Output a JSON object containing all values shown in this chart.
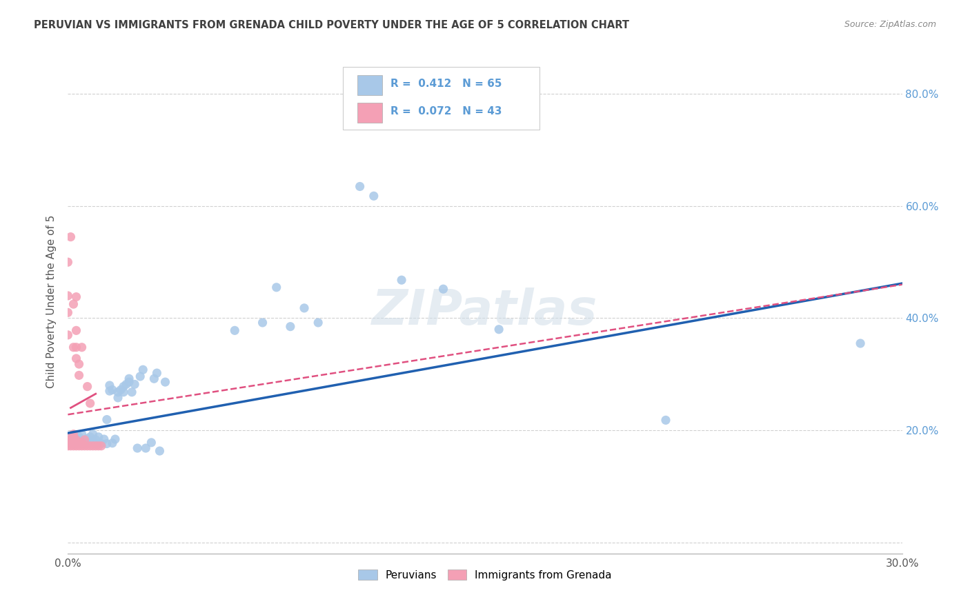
{
  "title": "PERUVIAN VS IMMIGRANTS FROM GRENADA CHILD POVERTY UNDER THE AGE OF 5 CORRELATION CHART",
  "source": "Source: ZipAtlas.com",
  "ylabel": "Child Poverty Under the Age of 5",
  "xlim": [
    0.0,
    0.3
  ],
  "ylim": [
    -0.02,
    0.88
  ],
  "xticks": [
    0.0,
    0.05,
    0.1,
    0.15,
    0.2,
    0.25,
    0.3
  ],
  "yticks": [
    0.0,
    0.2,
    0.4,
    0.6,
    0.8
  ],
  "ytick_labels": [
    "",
    "20.0%",
    "40.0%",
    "60.0%",
    "80.0%"
  ],
  "xtick_labels": [
    "0.0%",
    "",
    "",
    "",
    "",
    "",
    "30.0%"
  ],
  "blue_R": 0.412,
  "blue_N": 65,
  "pink_R": 0.072,
  "pink_N": 43,
  "blue_color": "#a8c8e8",
  "pink_color": "#f4a0b5",
  "blue_line_color": "#2060b0",
  "pink_line_color": "#e05080",
  "background_color": "#ffffff",
  "grid_color": "#d0d0d0",
  "title_color": "#404040",
  "axis_label_color": "#5b9bd5",
  "blue_line": [
    0.0,
    0.195,
    0.3,
    0.462
  ],
  "pink_line": [
    0.0,
    0.228,
    0.1,
    0.265
  ],
  "blue_points": [
    [
      0.001,
      0.185
    ],
    [
      0.001,
      0.178
    ],
    [
      0.002,
      0.18
    ],
    [
      0.002,
      0.19
    ],
    [
      0.002,
      0.175
    ],
    [
      0.003,
      0.178
    ],
    [
      0.003,
      0.182
    ],
    [
      0.003,
      0.192
    ],
    [
      0.004,
      0.176
    ],
    [
      0.004,
      0.183
    ],
    [
      0.004,
      0.188
    ],
    [
      0.005,
      0.18
    ],
    [
      0.005,
      0.176
    ],
    [
      0.005,
      0.193
    ],
    [
      0.006,
      0.182
    ],
    [
      0.006,
      0.176
    ],
    [
      0.007,
      0.176
    ],
    [
      0.007,
      0.185
    ],
    [
      0.008,
      0.188
    ],
    [
      0.009,
      0.18
    ],
    [
      0.009,
      0.193
    ],
    [
      0.01,
      0.183
    ],
    [
      0.01,
      0.176
    ],
    [
      0.011,
      0.188
    ],
    [
      0.012,
      0.176
    ],
    [
      0.013,
      0.184
    ],
    [
      0.014,
      0.219
    ],
    [
      0.014,
      0.176
    ],
    [
      0.015,
      0.27
    ],
    [
      0.015,
      0.28
    ],
    [
      0.016,
      0.272
    ],
    [
      0.016,
      0.177
    ],
    [
      0.017,
      0.184
    ],
    [
      0.018,
      0.258
    ],
    [
      0.018,
      0.268
    ],
    [
      0.019,
      0.272
    ],
    [
      0.02,
      0.268
    ],
    [
      0.02,
      0.278
    ],
    [
      0.021,
      0.282
    ],
    [
      0.022,
      0.286
    ],
    [
      0.022,
      0.292
    ],
    [
      0.023,
      0.268
    ],
    [
      0.024,
      0.282
    ],
    [
      0.025,
      0.168
    ],
    [
      0.026,
      0.296
    ],
    [
      0.027,
      0.308
    ],
    [
      0.028,
      0.168
    ],
    [
      0.03,
      0.178
    ],
    [
      0.031,
      0.292
    ],
    [
      0.032,
      0.302
    ],
    [
      0.033,
      0.163
    ],
    [
      0.035,
      0.286
    ],
    [
      0.06,
      0.378
    ],
    [
      0.07,
      0.392
    ],
    [
      0.075,
      0.455
    ],
    [
      0.08,
      0.385
    ],
    [
      0.085,
      0.418
    ],
    [
      0.09,
      0.392
    ],
    [
      0.105,
      0.635
    ],
    [
      0.11,
      0.618
    ],
    [
      0.12,
      0.468
    ],
    [
      0.135,
      0.452
    ],
    [
      0.155,
      0.38
    ],
    [
      0.215,
      0.218
    ],
    [
      0.285,
      0.355
    ]
  ],
  "pink_points": [
    [
      0.0,
      0.172
    ],
    [
      0.0,
      0.182
    ],
    [
      0.0,
      0.188
    ],
    [
      0.001,
      0.172
    ],
    [
      0.001,
      0.178
    ],
    [
      0.001,
      0.183
    ],
    [
      0.001,
      0.175
    ],
    [
      0.001,
      0.545
    ],
    [
      0.002,
      0.172
    ],
    [
      0.002,
      0.178
    ],
    [
      0.002,
      0.182
    ],
    [
      0.002,
      0.188
    ],
    [
      0.002,
      0.193
    ],
    [
      0.002,
      0.348
    ],
    [
      0.002,
      0.425
    ],
    [
      0.003,
      0.172
    ],
    [
      0.003,
      0.178
    ],
    [
      0.003,
      0.183
    ],
    [
      0.003,
      0.328
    ],
    [
      0.003,
      0.348
    ],
    [
      0.003,
      0.378
    ],
    [
      0.003,
      0.438
    ],
    [
      0.004,
      0.172
    ],
    [
      0.004,
      0.178
    ],
    [
      0.004,
      0.298
    ],
    [
      0.004,
      0.318
    ],
    [
      0.005,
      0.172
    ],
    [
      0.005,
      0.178
    ],
    [
      0.005,
      0.348
    ],
    [
      0.006,
      0.172
    ],
    [
      0.006,
      0.183
    ],
    [
      0.007,
      0.172
    ],
    [
      0.007,
      0.278
    ],
    [
      0.008,
      0.172
    ],
    [
      0.008,
      0.248
    ],
    [
      0.009,
      0.172
    ],
    [
      0.01,
      0.172
    ],
    [
      0.011,
      0.172
    ],
    [
      0.012,
      0.172
    ],
    [
      0.0,
      0.37
    ],
    [
      0.0,
      0.41
    ],
    [
      0.0,
      0.44
    ],
    [
      0.0,
      0.5
    ]
  ]
}
